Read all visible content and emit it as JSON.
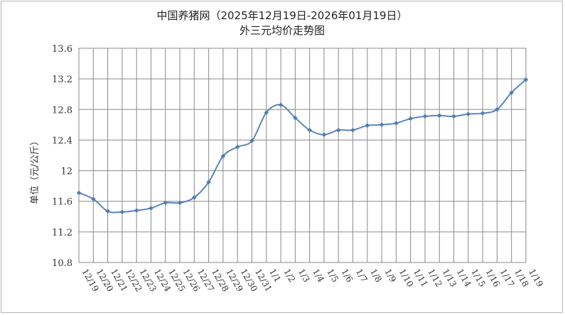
{
  "chart_data": {
    "type": "line",
    "title": "中国养猪网（2025年12月19日-2026年01月19日）",
    "subtitle": "外三元均价走势图",
    "ylabel": "单位（元/公斤）",
    "xlabel": "",
    "ylim": [
      10.8,
      13.6
    ],
    "yticks": [
      "10.8",
      "11.2",
      "11.6",
      "12",
      "12.4",
      "12.8",
      "13.2",
      "13.6"
    ],
    "ytick_values": [
      10.8,
      11.2,
      11.6,
      12.0,
      12.4,
      12.8,
      13.2,
      13.6
    ],
    "grid": true,
    "legend": "none",
    "line_color": "#5a86b8",
    "categories": [
      "12/19",
      "12/20",
      "12/21",
      "12/22",
      "12/23",
      "12/24",
      "12/25",
      "12/26",
      "12/27",
      "12/28",
      "12/29",
      "12/30",
      "12/31",
      "1/1",
      "1/2",
      "1/3",
      "1/4",
      "1/5",
      "1/6",
      "1/7",
      "1/8",
      "1/9",
      "1/10",
      "1/11",
      "1/12",
      "1/13",
      "1/14",
      "1/15",
      "1/16",
      "1/17",
      "1/18",
      "1/19"
    ],
    "values": [
      11.71,
      11.63,
      11.47,
      11.46,
      11.48,
      11.51,
      11.58,
      11.58,
      11.65,
      11.85,
      12.19,
      12.31,
      12.39,
      12.76,
      12.86,
      12.69,
      12.53,
      12.47,
      12.53,
      12.53,
      12.59,
      12.6,
      12.62,
      12.68,
      12.71,
      12.72,
      12.71,
      12.74,
      12.75,
      12.8,
      13.02,
      13.19
    ]
  }
}
